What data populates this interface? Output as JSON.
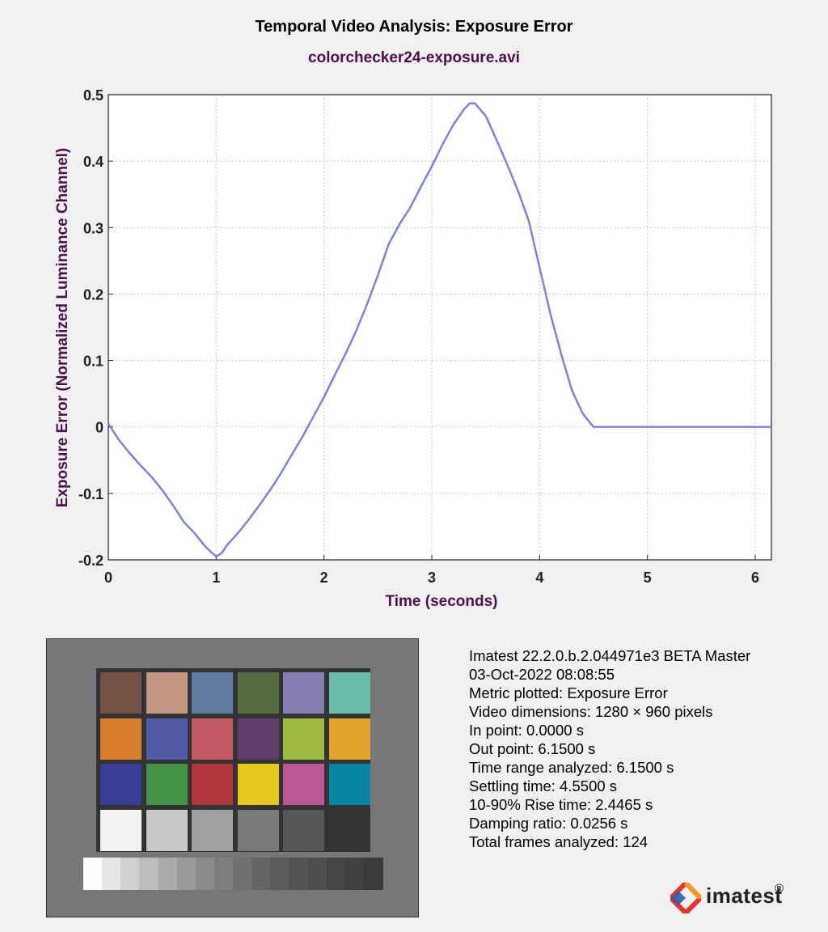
{
  "chart_data": {
    "type": "line",
    "title": "Temporal Video Analysis: Exposure Error",
    "subtitle": "colorchecker24-exposure.avi",
    "xlabel": "Time (seconds)",
    "ylabel": "Exposure Error (Normalized Luminance Channel)",
    "xlim": [
      0,
      6.15
    ],
    "ylim": [
      -0.2,
      0.5
    ],
    "xticks": [
      "0",
      "1",
      "2",
      "3",
      "4",
      "5",
      "6"
    ],
    "yticks": [
      "-0.2",
      "-0.1",
      "0",
      "0.1",
      "0.2",
      "0.3",
      "0.4",
      "0.5"
    ],
    "grid": true,
    "line_color": "#7b7be8",
    "series": [
      {
        "name": "",
        "x": [
          0,
          0.1,
          0.2,
          0.3,
          0.4,
          0.5,
          0.6,
          0.7,
          0.8,
          0.9,
          0.95,
          1.0,
          1.05,
          1.1,
          1.2,
          1.3,
          1.4,
          1.5,
          1.6,
          1.7,
          1.8,
          1.9,
          2.0,
          2.1,
          2.2,
          2.3,
          2.4,
          2.5,
          2.6,
          2.7,
          2.8,
          2.9,
          3.0,
          3.1,
          3.2,
          3.3,
          3.35,
          3.4,
          3.5,
          3.6,
          3.7,
          3.8,
          3.9,
          4.0,
          4.1,
          4.2,
          4.3,
          4.4,
          4.5,
          4.55,
          4.7,
          5.0,
          5.5,
          6.0,
          6.15
        ],
        "y": [
          0.005,
          -0.02,
          -0.04,
          -0.058,
          -0.075,
          -0.095,
          -0.118,
          -0.143,
          -0.16,
          -0.18,
          -0.188,
          -0.195,
          -0.19,
          -0.178,
          -0.16,
          -0.14,
          -0.118,
          -0.095,
          -0.07,
          -0.042,
          -0.015,
          0.015,
          0.045,
          0.078,
          0.11,
          0.145,
          0.185,
          0.228,
          0.275,
          0.305,
          0.33,
          0.362,
          0.392,
          0.425,
          0.455,
          0.478,
          0.487,
          0.487,
          0.468,
          0.432,
          0.395,
          0.355,
          0.31,
          0.24,
          0.17,
          0.11,
          0.055,
          0.02,
          0.0,
          0.0,
          0.0,
          0.0,
          0.0,
          0.0,
          0.0
        ]
      }
    ]
  },
  "target": {
    "patch_colors": [
      [
        "#735244",
        "#c29682",
        "#627a9d",
        "#576c43",
        "#8580b1",
        "#67bdaa"
      ],
      [
        "#d67e2c",
        "#505ba6",
        "#c15a63",
        "#5e3c6c",
        "#9dbc40",
        "#e0a32e"
      ],
      [
        "#383d96",
        "#469449",
        "#af363c",
        "#e7c71f",
        "#bb5695",
        "#0885a1"
      ],
      [
        "#f3f3f2",
        "#c8c8c8",
        "#a0a0a0",
        "#7a7a79",
        "#555555",
        "#343434"
      ]
    ],
    "gray_steps": [
      "#fdfdfd",
      "#e6e6e6",
      "#d0d0d0",
      "#bdbdbd",
      "#ababab",
      "#9a9a9a",
      "#8b8b8b",
      "#7d7d7d",
      "#707070",
      "#656565",
      "#5c5c5c",
      "#535353",
      "#4c4c4c",
      "#454545",
      "#404040",
      "#3b3b3b"
    ]
  },
  "info": {
    "lines": [
      "Imatest 22.2.0.b.2.044971e3 BETA Master",
      "03-Oct-2022 08:08:55",
      "Metric plotted: Exposure Error",
      "Video dimensions: 1280 × 960 pixels",
      "In point: 0.0000 s",
      "Out point: 6.1500 s",
      "Time range analyzed: 6.1500 s",
      "Settling time: 4.5500 s",
      "10-90% Rise time: 2.4465 s",
      "Damping ratio: 0.0256 s",
      "Total frames analyzed: 124"
    ]
  },
  "logo": {
    "text": "imatest",
    "mark": "®",
    "icon": "imatest-logo-icon"
  }
}
